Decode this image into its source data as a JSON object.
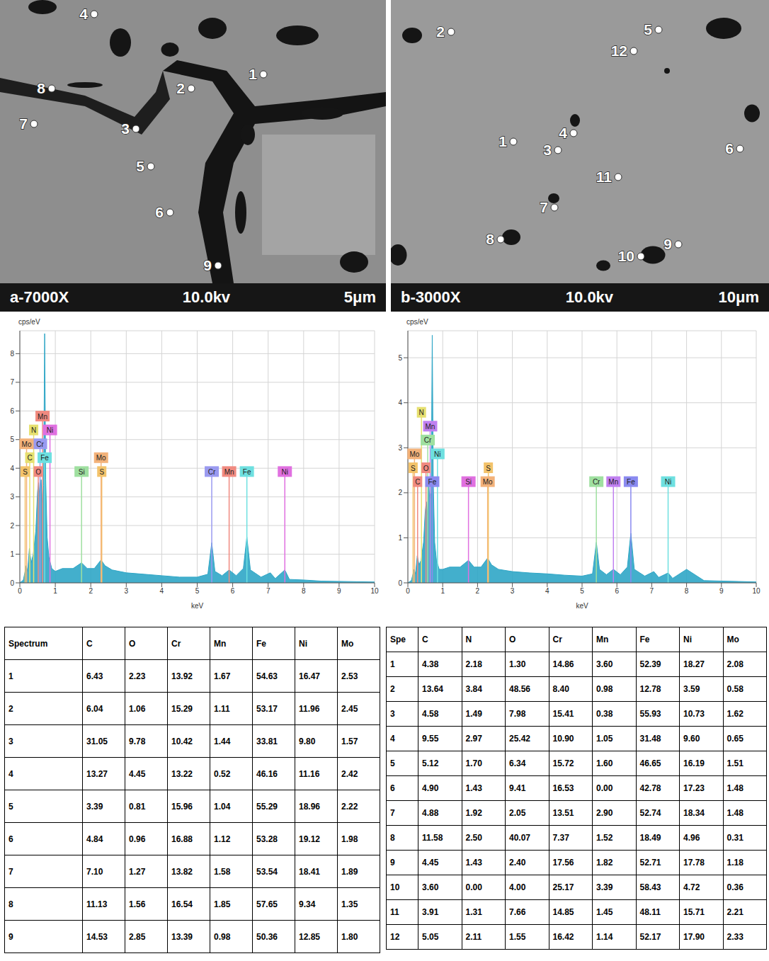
{
  "images": [
    {
      "caption": "a-7000X",
      "voltage": "10.0kv",
      "scale": "5μm",
      "points": [
        1,
        2,
        3,
        4,
        5,
        6,
        7,
        8,
        9
      ]
    },
    {
      "caption": "b-3000X",
      "voltage": "10.0kv",
      "scale": "10μm",
      "points": [
        1,
        2,
        3,
        4,
        5,
        6,
        7,
        8,
        9,
        10,
        11,
        12
      ]
    }
  ],
  "chart_data": [
    {
      "type": "area",
      "x_label": "keV",
      "y_label": "cps/eV",
      "color": "#2fa6c6",
      "grid": true,
      "xlim": [
        0,
        10
      ],
      "xticks": [
        0,
        1,
        2,
        3,
        4,
        5,
        6,
        7,
        8,
        9,
        10
      ],
      "ylim": [
        0,
        8.8
      ],
      "yticks": [
        0,
        1,
        2,
        3,
        4,
        5,
        6,
        7,
        8
      ],
      "x": [
        0,
        0.1,
        0.18,
        0.22,
        0.27,
        0.32,
        0.38,
        0.45,
        0.5,
        0.53,
        0.56,
        0.6,
        0.63,
        0.67,
        0.7,
        0.73,
        0.77,
        0.82,
        0.9,
        1.0,
        1.2,
        1.5,
        1.74,
        1.9,
        2.1,
        2.29,
        2.4,
        2.6,
        3.0,
        3.5,
        4.0,
        4.5,
        5.0,
        5.3,
        5.41,
        5.5,
        5.7,
        5.9,
        6.1,
        6.3,
        6.4,
        6.5,
        6.8,
        7.06,
        7.2,
        7.47,
        7.6,
        8.0,
        8.5,
        9.0,
        9.5,
        10
      ],
      "values": [
        0,
        0.1,
        0.6,
        0.4,
        1.2,
        0.7,
        1.0,
        1.8,
        3.2,
        3.5,
        3.0,
        3.6,
        2.8,
        3.4,
        8.7,
        3.6,
        1.6,
        0.9,
        0.5,
        0.4,
        0.5,
        0.5,
        0.7,
        0.5,
        0.5,
        0.8,
        0.6,
        0.45,
        0.35,
        0.3,
        0.25,
        0.2,
        0.2,
        0.3,
        1.4,
        0.4,
        0.25,
        0.45,
        0.25,
        0.5,
        1.6,
        0.45,
        0.2,
        0.35,
        0.15,
        0.45,
        0.12,
        0.1,
        0.06,
        0.05,
        0.04,
        0.03
      ],
      "annotations": [
        {
          "label": "S",
          "x": 0.15,
          "color": "#f3c36b"
        },
        {
          "label": "O",
          "x": 0.52,
          "color": "#f08a80"
        },
        {
          "label": "Si",
          "x": 1.74,
          "color": "#9fe0a0"
        },
        {
          "label": "S",
          "x": 2.31,
          "color": "#f3c36b"
        },
        {
          "label": "Cr",
          "x": 5.41,
          "color": "#9a9af0"
        },
        {
          "label": "Fe",
          "x": 6.4,
          "color": "#6ee0e0"
        },
        {
          "label": "Ni",
          "x": 7.47,
          "color": "#e070e0"
        },
        {
          "label": "C",
          "x": 0.28,
          "color": "#e6e070"
        },
        {
          "label": "Fe",
          "x": 0.7,
          "color": "#6ee0e0"
        },
        {
          "label": "Mo",
          "x": 2.29,
          "color": "#f3b27a"
        },
        {
          "label": "Cr",
          "x": 0.57,
          "color": "#9a9af0"
        },
        {
          "label": "Ni",
          "x": 0.85,
          "color": "#e070e0"
        },
        {
          "label": "Mn",
          "x": 5.9,
          "color": "#f08a80"
        },
        {
          "label": "Mo",
          "x": 0.19,
          "color": "#f3b27a"
        },
        {
          "label": "N",
          "x": 0.39,
          "color": "#e6e070"
        },
        {
          "label": "Mn",
          "x": 0.64,
          "color": "#f08a80"
        }
      ]
    },
    {
      "type": "area",
      "x_label": "keV",
      "y_label": "cps/eV",
      "color": "#2fa6c6",
      "grid": true,
      "xlim": [
        0,
        10
      ],
      "xticks": [
        0,
        1,
        2,
        3,
        4,
        5,
        6,
        7,
        8,
        9,
        10
      ],
      "ylim": [
        0,
        5.6
      ],
      "yticks": [
        0,
        1,
        2,
        3,
        4,
        5
      ],
      "x": [
        0,
        0.1,
        0.18,
        0.22,
        0.27,
        0.32,
        0.38,
        0.45,
        0.5,
        0.53,
        0.56,
        0.6,
        0.63,
        0.67,
        0.7,
        0.73,
        0.77,
        0.82,
        0.9,
        1.0,
        1.2,
        1.5,
        1.74,
        1.9,
        2.1,
        2.29,
        2.4,
        2.6,
        3.0,
        3.5,
        4.0,
        4.5,
        5.0,
        5.3,
        5.41,
        5.5,
        5.7,
        5.9,
        6.1,
        6.3,
        6.4,
        6.5,
        6.8,
        7.06,
        7.2,
        7.47,
        7.6,
        8.0,
        8.5,
        9.0,
        9.5,
        10
      ],
      "values": [
        0,
        0.05,
        0.3,
        0.2,
        0.6,
        0.4,
        0.5,
        0.9,
        1.6,
        1.8,
        1.5,
        2.2,
        1.8,
        2.0,
        5.5,
        2.2,
        0.9,
        0.5,
        0.3,
        0.3,
        0.35,
        0.35,
        0.5,
        0.35,
        0.35,
        0.55,
        0.4,
        0.3,
        0.25,
        0.22,
        0.2,
        0.17,
        0.15,
        0.2,
        0.9,
        0.3,
        0.18,
        0.3,
        0.18,
        0.35,
        1.1,
        0.3,
        0.15,
        0.25,
        0.12,
        0.22,
        0.1,
        0.3,
        0.05,
        0.04,
        0.03,
        0.02
      ],
      "annotations": [
        {
          "label": "C",
          "x": 0.28,
          "color": "#f08a80"
        },
        {
          "label": "Fe",
          "x": 0.7,
          "color": "#8a8af0"
        },
        {
          "label": "Si",
          "x": 1.74,
          "color": "#e070e0"
        },
        {
          "label": "Mo",
          "x": 2.29,
          "color": "#f3b27a"
        },
        {
          "label": "Cr",
          "x": 5.41,
          "color": "#9fe0a0"
        },
        {
          "label": "Fe",
          "x": 6.4,
          "color": "#8a8af0"
        },
        {
          "label": "Ni",
          "x": 7.47,
          "color": "#6ee0e0"
        },
        {
          "label": "S",
          "x": 0.15,
          "color": "#f3c36b"
        },
        {
          "label": "O",
          "x": 0.52,
          "color": "#f08a80"
        },
        {
          "label": "Ni",
          "x": 0.85,
          "color": "#6ee0e0"
        },
        {
          "label": "S",
          "x": 2.31,
          "color": "#f3c36b"
        },
        {
          "label": "Mn",
          "x": 5.9,
          "color": "#c080f0"
        },
        {
          "label": "Mo",
          "x": 0.19,
          "color": "#f3b27a"
        },
        {
          "label": "Cr",
          "x": 0.57,
          "color": "#9fe0a0"
        },
        {
          "label": "Mn",
          "x": 0.64,
          "color": "#c080f0"
        },
        {
          "label": "N",
          "x": 0.39,
          "color": "#e6e070"
        }
      ]
    }
  ],
  "tables": [
    {
      "header": [
        "Spectrum",
        "C",
        "O",
        "Cr",
        "Mn",
        "Fe",
        "Ni",
        "Mo"
      ],
      "rows": [
        [
          "1",
          "6.43",
          "2.23",
          "13.92",
          "1.67",
          "54.63",
          "16.47",
          "2.53"
        ],
        [
          "2",
          "6.04",
          "1.06",
          "15.29",
          "1.11",
          "53.17",
          "11.96",
          "2.45"
        ],
        [
          "3",
          "31.05",
          "9.78",
          "10.42",
          "1.44",
          "33.81",
          "9.80",
          "1.57"
        ],
        [
          "4",
          "13.27",
          "4.45",
          "13.22",
          "0.52",
          "46.16",
          "11.16",
          "2.42"
        ],
        [
          "5",
          "3.39",
          "0.81",
          "15.96",
          "1.04",
          "55.29",
          "18.96",
          "2.22"
        ],
        [
          "6",
          "4.84",
          "0.96",
          "16.88",
          "1.12",
          "53.28",
          "19.12",
          "1.98"
        ],
        [
          "7",
          "7.10",
          "1.27",
          "13.82",
          "1.58",
          "53.54",
          "18.41",
          "1.89"
        ],
        [
          "8",
          "11.13",
          "1.56",
          "16.54",
          "1.85",
          "57.65",
          "9.34",
          "1.35"
        ],
        [
          "9",
          "14.53",
          "2.85",
          "13.39",
          "0.98",
          "50.36",
          "12.85",
          "1.80"
        ]
      ]
    },
    {
      "header": [
        "Spe",
        "C",
        "N",
        "O",
        "Cr",
        "Mn",
        "Fe",
        "Ni",
        "Mo"
      ],
      "rows": [
        [
          "1",
          "4.38",
          "2.18",
          "1.30",
          "14.86",
          "3.60",
          "52.39",
          "18.27",
          "2.08"
        ],
        [
          "2",
          "13.64",
          "3.84",
          "48.56",
          "8.40",
          "0.98",
          "12.78",
          "3.59",
          "0.58"
        ],
        [
          "3",
          "4.58",
          "1.49",
          "7.98",
          "15.41",
          "0.38",
          "55.93",
          "10.73",
          "1.62"
        ],
        [
          "4",
          "9.55",
          "2.97",
          "25.42",
          "10.90",
          "1.05",
          "31.48",
          "9.60",
          "0.65"
        ],
        [
          "5",
          "5.12",
          "1.70",
          "6.34",
          "15.72",
          "1.60",
          "46.65",
          "16.19",
          "1.51"
        ],
        [
          "6",
          "4.90",
          "1.43",
          "9.41",
          "16.53",
          "0.00",
          "42.78",
          "17.23",
          "1.48"
        ],
        [
          "7",
          "4.88",
          "1.92",
          "2.05",
          "13.51",
          "2.90",
          "52.74",
          "18.34",
          "1.48"
        ],
        [
          "8",
          "11.58",
          "2.50",
          "40.07",
          "7.37",
          "1.52",
          "18.49",
          "4.96",
          "0.31"
        ],
        [
          "9",
          "4.45",
          "1.43",
          "2.40",
          "17.56",
          "1.82",
          "52.71",
          "17.78",
          "1.18"
        ],
        [
          "10",
          "3.60",
          "0.00",
          "4.00",
          "25.17",
          "3.39",
          "58.43",
          "4.72",
          "0.36"
        ],
        [
          "11",
          "3.91",
          "1.31",
          "7.66",
          "14.85",
          "1.45",
          "48.11",
          "15.71",
          "2.21"
        ],
        [
          "12",
          "5.05",
          "2.11",
          "1.55",
          "16.42",
          "1.14",
          "52.17",
          "17.90",
          "2.33"
        ]
      ]
    }
  ]
}
